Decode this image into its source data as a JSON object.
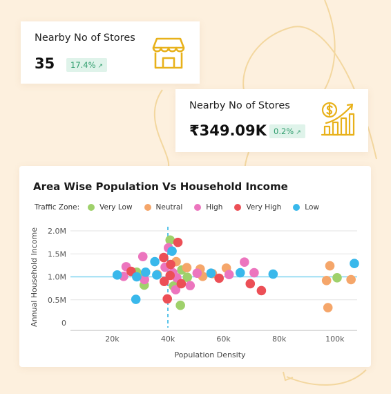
{
  "kpi_cards": [
    {
      "title": "Nearby No of Stores",
      "value": "35",
      "change": "17.4%",
      "trend_icon": "arrow-up-right-icon",
      "icon": "store-icon"
    },
    {
      "title": "Nearby No of Stores",
      "value": "₹349.09K",
      "change": "0.2%",
      "trend_icon": "arrow-up-right-icon",
      "icon": "money-growth-icon"
    }
  ],
  "colors": {
    "background": "#fdf0de",
    "accent_gold": "#e8b11a",
    "badge_bg": "#dff3ea",
    "badge_text": "#2e9c6c"
  },
  "chart_data": {
    "type": "scatter",
    "title": "Area Wise Population Vs Household Income",
    "xlabel": "Population Density",
    "ylabel": "Annual Household Income",
    "xlim": [
      5000,
      108000
    ],
    "ylim": [
      0,
      2000000
    ],
    "x_ticks": [
      20000,
      40000,
      60000,
      80000,
      100000
    ],
    "x_tick_labels": [
      "20k",
      "40k",
      "60k",
      "80k",
      "100k"
    ],
    "y_ticks": [
      0,
      500000,
      1000000,
      1500000,
      2000000
    ],
    "y_tick_labels": [
      "0",
      "0.5M",
      "1.0M",
      "1.5M",
      "2.0M"
    ],
    "grid": "horizontal",
    "reference_lines": {
      "x": 40000,
      "y": 1000000
    },
    "legend": {
      "title": "Traffic Zone:",
      "placement": "top-left",
      "items": [
        {
          "name": "Very Low",
          "color": "#9fd16b"
        },
        {
          "name": "Neutral",
          "color": "#f5a66a"
        },
        {
          "name": "High",
          "color": "#ec75be"
        },
        {
          "name": "Very High",
          "color": "#ec4f56"
        },
        {
          "name": "Low",
          "color": "#39b8eb"
        }
      ]
    },
    "series": [
      {
        "name": "Very Low",
        "color": "#9fd16b",
        "points": [
          [
            28800,
            1100000
          ],
          [
            30800,
            1030000
          ],
          [
            31500,
            820000
          ],
          [
            40800,
            1800000
          ],
          [
            42000,
            800000
          ],
          [
            44500,
            380000
          ],
          [
            45000,
            1150000
          ],
          [
            47000,
            990000
          ],
          [
            100800,
            980000
          ]
        ]
      },
      {
        "name": "Neutral",
        "color": "#f5a66a",
        "points": [
          [
            36200,
            1050000
          ],
          [
            43000,
            1330000
          ],
          [
            46800,
            1200000
          ],
          [
            51600,
            1170000
          ],
          [
            52500,
            1010000
          ],
          [
            56000,
            1070000
          ],
          [
            61000,
            1190000
          ],
          [
            97000,
            920000
          ],
          [
            97500,
            330000
          ],
          [
            98200,
            1240000
          ],
          [
            105800,
            940000
          ]
        ]
      },
      {
        "name": "High",
        "color": "#ec75be",
        "points": [
          [
            24100,
            1010000
          ],
          [
            25000,
            1220000
          ],
          [
            31000,
            1440000
          ],
          [
            31600,
            940000
          ],
          [
            39000,
            1210000
          ],
          [
            40200,
            1630000
          ],
          [
            41800,
            1090000
          ],
          [
            42800,
            720000
          ],
          [
            43200,
            980000
          ],
          [
            48000,
            810000
          ],
          [
            50500,
            1080000
          ],
          [
            67500,
            1320000
          ],
          [
            71000,
            1090000
          ],
          [
            62000,
            1050000
          ]
        ]
      },
      {
        "name": "Very High",
        "color": "#ec4f56",
        "points": [
          [
            26800,
            1120000
          ],
          [
            38500,
            1420000
          ],
          [
            38700,
            900000
          ],
          [
            39800,
            520000
          ],
          [
            40800,
            1030000
          ],
          [
            41000,
            1270000
          ],
          [
            43600,
            1750000
          ],
          [
            44800,
            850000
          ],
          [
            58400,
            970000
          ],
          [
            69600,
            850000
          ],
          [
            73600,
            700000
          ]
        ]
      },
      {
        "name": "Low",
        "color": "#39b8eb",
        "points": [
          [
            21800,
            1040000
          ],
          [
            28500,
            510000
          ],
          [
            28800,
            1000000
          ],
          [
            32000,
            1100000
          ],
          [
            35300,
            1330000
          ],
          [
            36000,
            1040000
          ],
          [
            41500,
            1560000
          ],
          [
            55500,
            1080000
          ],
          [
            66000,
            1090000
          ],
          [
            77800,
            1060000
          ],
          [
            107000,
            1290000
          ]
        ]
      }
    ]
  }
}
